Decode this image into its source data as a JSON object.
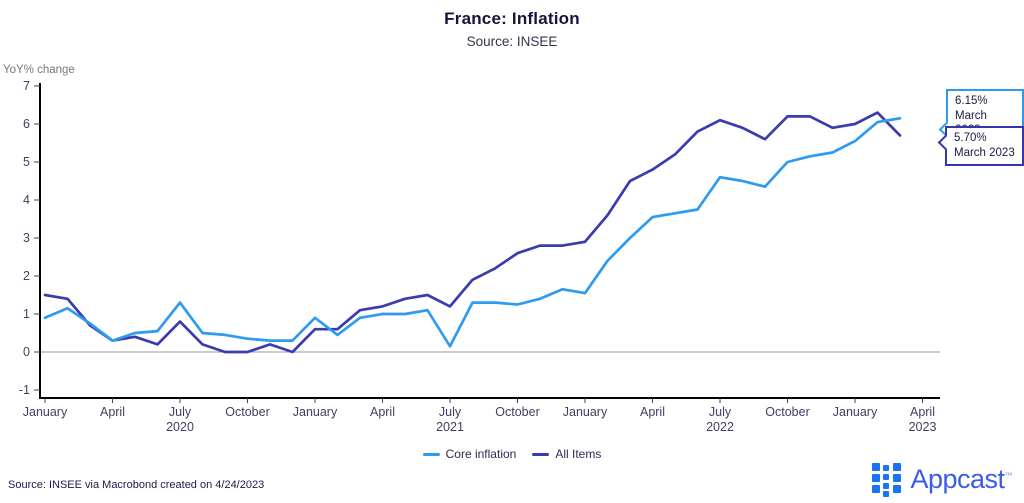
{
  "header": {
    "title": "France: Inflation",
    "subtitle": "Source: INSEE"
  },
  "chart_data": {
    "type": "line",
    "title": "France: Inflation",
    "subtitle": "Source: INSEE",
    "ylabel": "YoY% change",
    "ylim": [
      -1,
      7
    ],
    "grid": "zero-line-only",
    "legend_position": "bottom-center",
    "categories": [
      "Jan 2020",
      "Feb 2020",
      "Mar 2020",
      "Apr 2020",
      "May 2020",
      "Jun 2020",
      "Jul 2020",
      "Aug 2020",
      "Sep 2020",
      "Oct 2020",
      "Nov 2020",
      "Dec 2020",
      "Jan 2021",
      "Feb 2021",
      "Mar 2021",
      "Apr 2021",
      "May 2021",
      "Jun 2021",
      "Jul 2021",
      "Aug 2021",
      "Sep 2021",
      "Oct 2021",
      "Nov 2021",
      "Dec 2021",
      "Jan 2022",
      "Feb 2022",
      "Mar 2022",
      "Apr 2022",
      "May 2022",
      "Jun 2022",
      "Jul 2022",
      "Aug 2022",
      "Sep 2022",
      "Oct 2022",
      "Nov 2022",
      "Dec 2022",
      "Jan 2023",
      "Feb 2023",
      "Mar 2023",
      "Apr 2023"
    ],
    "x_ticks": [
      {
        "index": 0,
        "label": "January"
      },
      {
        "index": 3,
        "label": "April"
      },
      {
        "index": 6,
        "label": "July",
        "year": "2020"
      },
      {
        "index": 9,
        "label": "October"
      },
      {
        "index": 12,
        "label": "January"
      },
      {
        "index": 15,
        "label": "April"
      },
      {
        "index": 18,
        "label": "July",
        "year": "2021"
      },
      {
        "index": 21,
        "label": "October"
      },
      {
        "index": 24,
        "label": "January"
      },
      {
        "index": 27,
        "label": "April"
      },
      {
        "index": 30,
        "label": "July",
        "year": "2022"
      },
      {
        "index": 33,
        "label": "October"
      },
      {
        "index": 36,
        "label": "January"
      },
      {
        "index": 39,
        "label": "April",
        "year": "2023"
      }
    ],
    "y_ticks": [
      -1,
      0,
      1,
      2,
      3,
      4,
      5,
      6,
      7
    ],
    "series": [
      {
        "name": "All Items",
        "color": "#3b3bb0",
        "values": [
          1.5,
          1.4,
          0.7,
          0.3,
          0.4,
          0.2,
          0.8,
          0.2,
          0.0,
          0.0,
          0.2,
          0.0,
          0.6,
          0.6,
          1.1,
          1.2,
          1.4,
          1.5,
          1.2,
          1.9,
          2.2,
          2.6,
          2.8,
          2.8,
          2.9,
          3.6,
          4.5,
          4.8,
          5.2,
          5.8,
          6.1,
          5.9,
          5.6,
          6.2,
          6.2,
          5.9,
          6.0,
          6.3,
          5.7
        ]
      },
      {
        "name": "Core inflation",
        "color": "#2e9bf0",
        "values": [
          0.9,
          1.15,
          0.75,
          0.3,
          0.5,
          0.55,
          1.3,
          0.5,
          0.45,
          0.35,
          0.3,
          0.3,
          0.9,
          0.45,
          0.9,
          1.0,
          1.0,
          1.1,
          0.15,
          1.3,
          1.3,
          1.25,
          1.4,
          1.65,
          1.55,
          2.4,
          3.0,
          3.55,
          3.65,
          3.75,
          4.6,
          4.5,
          4.35,
          5.0,
          5.15,
          5.25,
          5.55,
          6.05,
          6.15
        ]
      }
    ]
  },
  "callouts": [
    {
      "value": "6.15%",
      "date": "March 2023",
      "series": "Core inflation",
      "color": "#2e9bf0"
    },
    {
      "value": "5.70%",
      "date": "March 2023",
      "series": "All Items",
      "color": "#3434ac"
    }
  ],
  "legend": {
    "items": [
      {
        "label": "Core inflation",
        "color": "#2e9bf0"
      },
      {
        "label": "All Items",
        "color": "#3b3bb0"
      }
    ]
  },
  "footer": {
    "source_text": "Source: INSEE via Macrobond created on 4/24/2023",
    "logo_text": "Appcast",
    "logo_tm": "™"
  },
  "colors": {
    "core_line": "#2e9bf0",
    "all_items_line": "#3b3bb0",
    "axis": "#000000",
    "zero_line": "#9a9a9a",
    "tick_label": "#3f3f63",
    "navy_text": "#1a1a44",
    "logo_icon": "#1c72f4",
    "logo_word": "#3c5be8"
  }
}
